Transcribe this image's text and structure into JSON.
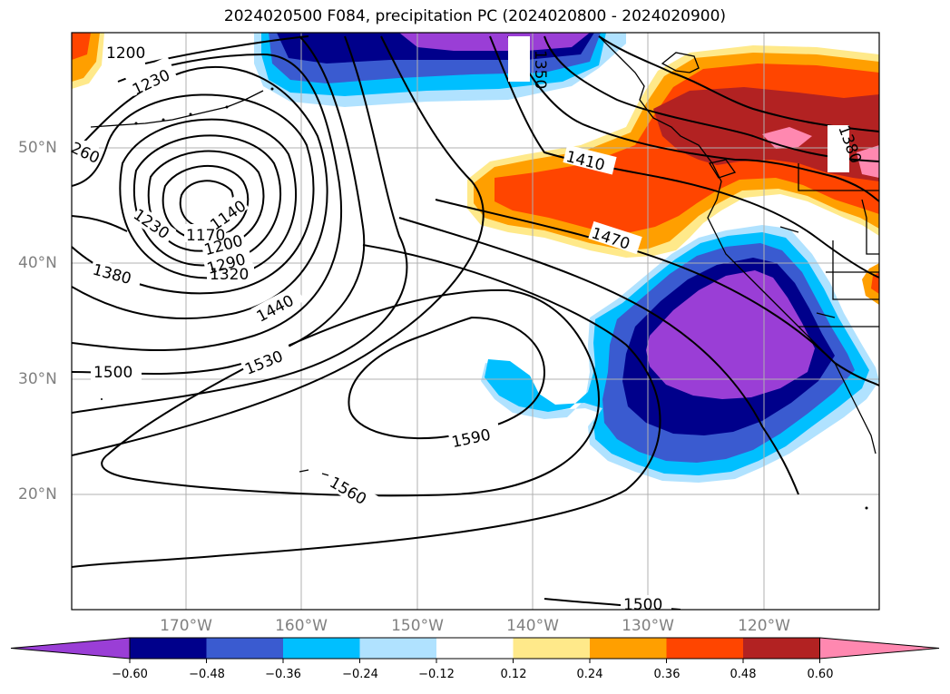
{
  "title": "2024020500 F084, precipitation PC (2024020800 - 2024020900)",
  "lon_labels": [
    "170°W",
    "160°W",
    "150°W",
    "140°W",
    "130°W",
    "120°W"
  ],
  "lat_labels": [
    "50°N",
    "40°N",
    "30°N",
    "20°N"
  ],
  "contour_labels": [
    "1200",
    "1230",
    "260",
    "1140",
    "1230",
    "1170",
    "1200",
    "1290",
    "1320",
    "1380",
    "1440",
    "1500",
    "1530",
    "1590",
    "1560",
    "1410",
    "1470",
    "1350",
    "1380",
    "1500"
  ],
  "colorbar": {
    "ticks": [
      "−0.60",
      "−0.48",
      "−0.36",
      "−0.24",
      "−0.12",
      "0.12",
      "0.24",
      "0.36",
      "0.48",
      "0.60"
    ],
    "colors": [
      "#9a3ed6",
      "#00008b",
      "#3a5bd0",
      "#00bfff",
      "#b0e2ff",
      "#ffffff",
      "#ffe98a",
      "#ff9f00",
      "#ff4500",
      "#b22222",
      "#ff88b0"
    ]
  },
  "colors": {
    "grid": "#b0b0b0",
    "contour": "#000000",
    "label": "#808080"
  }
}
